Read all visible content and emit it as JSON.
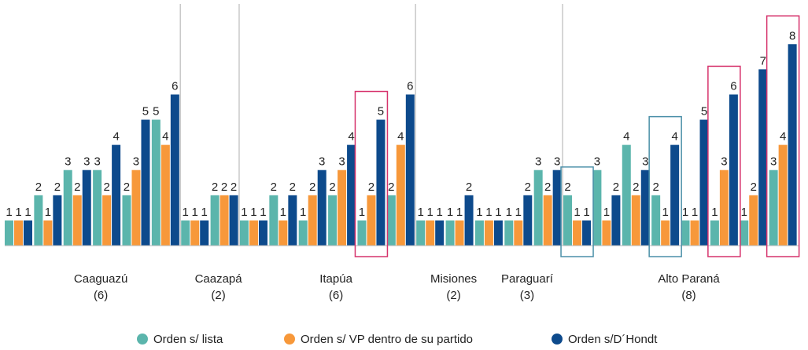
{
  "chart_data": {
    "type": "bar",
    "categories": [
      null,
      null,
      null,
      null,
      null,
      null,
      null,
      null,
      null,
      null,
      null,
      null,
      null,
      null,
      null,
      null,
      null,
      null,
      null,
      null,
      null,
      null,
      null,
      null,
      null,
      null,
      null
    ],
    "groups": [
      {
        "name": "Caaguazú",
        "seats": 6,
        "seats_label": "(6)"
      },
      {
        "name": "Caazapá",
        "seats": 2,
        "seats_label": "(2)"
      },
      {
        "name": "Itapúa",
        "seats": 6,
        "seats_label": "(6)"
      },
      {
        "name": "Misiones",
        "seats": 2,
        "seats_label": "(2)"
      },
      {
        "name": "Paraguarí",
        "seats": 3,
        "seats_label": "(3)"
      },
      {
        "name": "Alto Paraná",
        "seats": 8,
        "seats_label": "(8)"
      }
    ],
    "series": [
      {
        "name": "Orden s/ lista",
        "color": "#5bb5ac",
        "values": [
          1,
          2,
          3,
          3,
          2,
          5,
          1,
          2,
          1,
          2,
          1,
          2,
          1,
          2,
          1,
          1,
          1,
          1,
          3,
          2,
          3,
          4,
          2,
          1,
          1,
          1,
          3
        ]
      },
      {
        "name": "Orden s/ VP dentro de su partido",
        "color": "#f7983a",
        "values": [
          1,
          1,
          2,
          2,
          3,
          4,
          1,
          2,
          1,
          1,
          2,
          3,
          2,
          4,
          1,
          1,
          1,
          1,
          2,
          1,
          1,
          2,
          1,
          1,
          3,
          2,
          4
        ]
      },
      {
        "name": "Orden s/D´Hondt",
        "color": "#0d4a8c",
        "values": [
          1,
          2,
          3,
          4,
          5,
          6,
          1,
          2,
          1,
          2,
          3,
          4,
          5,
          6,
          1,
          2,
          1,
          2,
          3,
          1,
          2,
          3,
          4,
          5,
          6,
          7,
          8
        ]
      }
    ],
    "ylim": [
      0,
      8.6
    ]
  }
}
